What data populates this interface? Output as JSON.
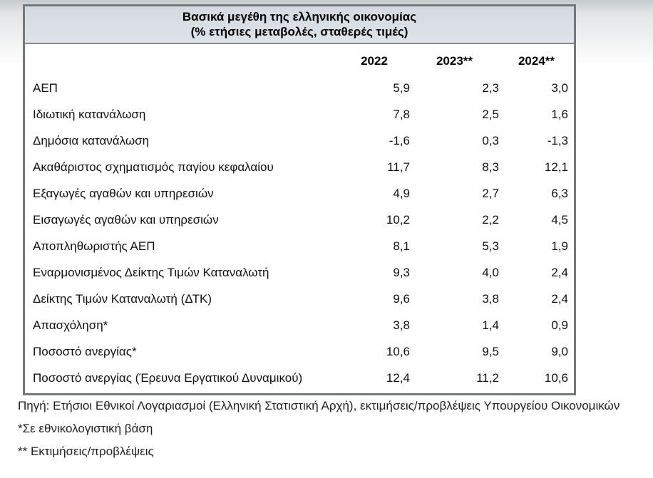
{
  "chart_data": {
    "type": "table",
    "title": "Βασικά μεγέθη της ελληνικής οικονομίας",
    "subtitle": "(% ετήσιες μεταβολές, σταθερές τιμές)",
    "columns": [
      "2022",
      "2023**",
      "2024**"
    ],
    "rows": [
      {
        "label": "ΑΕΠ",
        "values": [
          "5,9",
          "2,3",
          "3,0"
        ]
      },
      {
        "label": "Ιδιωτική κατανάλωση",
        "values": [
          "7,8",
          "2,5",
          "1,6"
        ]
      },
      {
        "label": "Δημόσια κατανάλωση",
        "values": [
          "-1,6",
          "0,3",
          "-1,3"
        ]
      },
      {
        "label": "Ακαθάριστος σχηματισμός παγίου κεφαλαίου",
        "values": [
          "11,7",
          "8,3",
          "12,1"
        ]
      },
      {
        "label": "Εξαγωγές αγαθών και υπηρεσιών",
        "values": [
          "4,9",
          "2,7",
          "6,3"
        ]
      },
      {
        "label": "Εισαγωγές αγαθών και υπηρεσιών",
        "values": [
          "10,2",
          "2,2",
          "4,5"
        ]
      },
      {
        "label": "Αποπληθωριστής ΑΕΠ",
        "values": [
          "8,1",
          "5,3",
          "1,9"
        ]
      },
      {
        "label": "Εναρμονισμένος Δείκτης Τιμών Καταναλωτή",
        "values": [
          "9,3",
          "4,0",
          "2,4"
        ]
      },
      {
        "label": "Δείκτης Τιμών Καταναλωτή (ΔΤΚ)",
        "values": [
          "9,6",
          "3,8",
          "2,4"
        ]
      },
      {
        "label": "Απασχόληση*",
        "values": [
          "3,8",
          "1,4",
          "0,9"
        ]
      },
      {
        "label": "Ποσοστό ανεργίας*",
        "values": [
          "10,6",
          "9,5",
          "9,0"
        ]
      },
      {
        "label": "Ποσοστό ανεργίας (Έρευνα Εργατικού Δυναμικού)",
        "values": [
          "12,4",
          "11,2",
          "10,6"
        ]
      }
    ]
  },
  "footnotes": {
    "source": "Πηγή: Ετήσιοι Εθνικοί Λογαριασμοί (Ελληνική Στατιστική Αρχή), εκτιμήσεις/προβλέψεις Υπουργείου Οικονομικών",
    "note_national_accounts": "*Σε εθνικολογιστική βάση",
    "note_estimates": "** Εκτιμήσεις/προβλέψεις"
  },
  "colors": {
    "title_band_top": "#d4dae1",
    "title_band_bottom": "#dee3e9",
    "table_border": "#75787b"
  }
}
